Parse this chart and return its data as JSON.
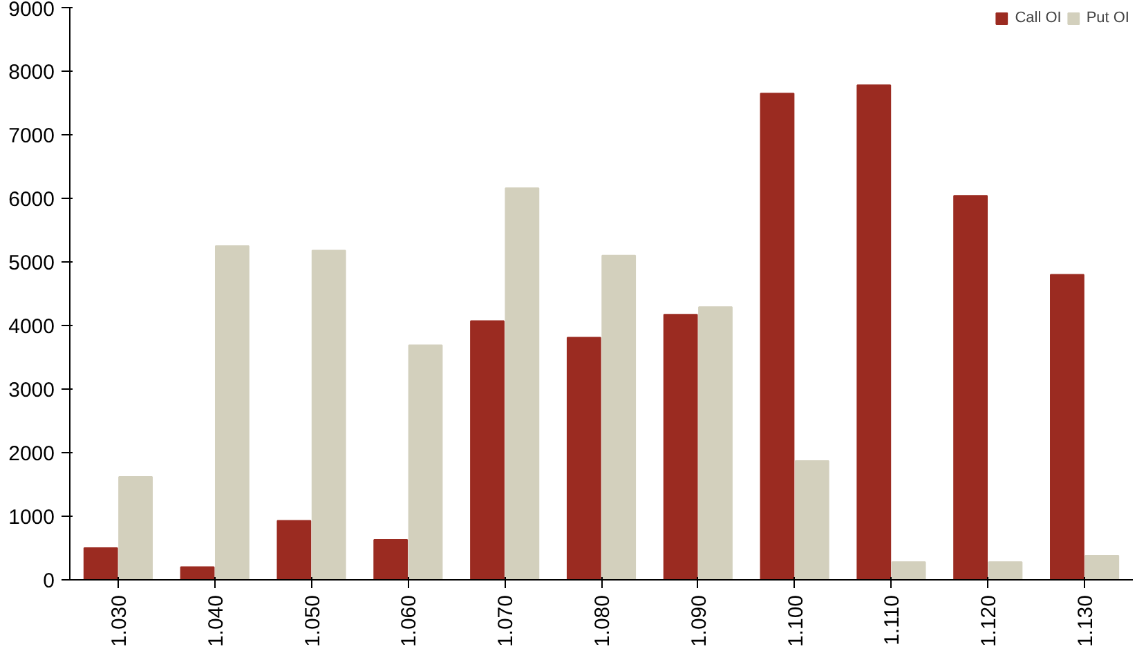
{
  "chart_data": {
    "type": "bar",
    "categories": [
      "1.030",
      "1.040",
      "1.050",
      "1.060",
      "1.070",
      "1.080",
      "1.090",
      "1.100",
      "1.110",
      "1.120",
      "1.130"
    ],
    "series": [
      {
        "name": "Call OI",
        "color": "#9b2b21",
        "values": [
          500,
          200,
          930,
          630,
          4070,
          3810,
          4170,
          7650,
          7780,
          6040,
          4800
        ]
      },
      {
        "name": "Put OI",
        "color": "#d3d0bd",
        "values": [
          1620,
          5250,
          5180,
          3690,
          6160,
          5100,
          4290,
          1870,
          280,
          280,
          380
        ]
      }
    ],
    "ylim": [
      0,
      9000
    ],
    "yticks": [
      0,
      1000,
      2000,
      3000,
      4000,
      5000,
      6000,
      7000,
      8000,
      9000
    ],
    "grid": false,
    "legend": "top right"
  }
}
